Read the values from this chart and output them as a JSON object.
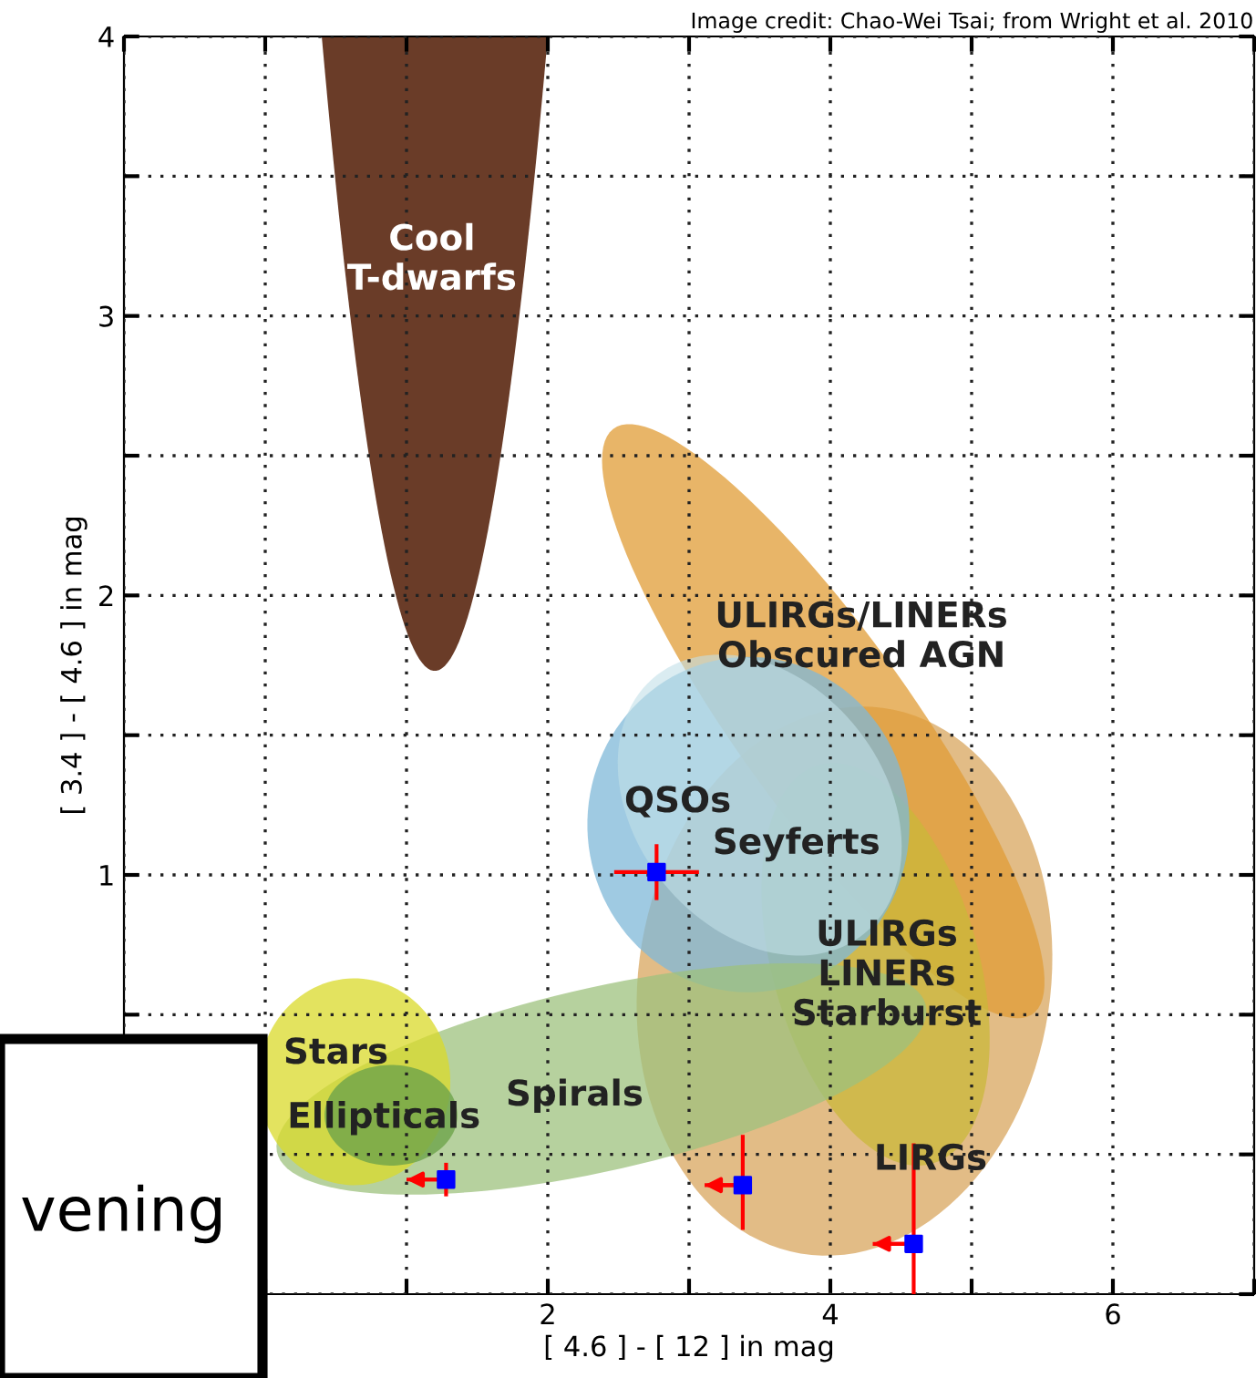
{
  "chart_data": {
    "type": "scatter",
    "xlabel": "[ 4.6 ] - [ 12 ] in mag",
    "ylabel": "[ 3.4 ] - [ 4.6 ] in mag",
    "xlim": [
      -1,
      7
    ],
    "ylim": [
      -0.5,
      4
    ],
    "xticks": [
      {
        "value": -1,
        "label": null
      },
      {
        "value": 0,
        "label": null
      },
      {
        "value": 1,
        "label": null
      },
      2,
      {
        "value": 3,
        "label": null
      },
      4,
      {
        "value": 5,
        "label": null
      },
      6,
      {
        "value": 7,
        "label": null
      }
    ],
    "yticks": [
      {
        "value": -0.5,
        "label": null
      },
      {
        "value": 0,
        "label": null
      },
      {
        "value": 0.5,
        "label": null
      },
      1,
      {
        "value": 1.5,
        "label": null
      },
      2,
      {
        "value": 2.5,
        "label": null
      },
      3,
      {
        "value": 3.5,
        "label": null
      },
      4
    ],
    "grid": true,
    "marker": "square",
    "series": [
      {
        "color": "#0000ff",
        "x": [
          2.77,
          1.28,
          3.38,
          4.59
        ],
        "values": [
          1.01,
          -0.09,
          -0.11,
          -0.32
        ],
        "xerrors": [
          [
            2.47,
            3.07
          ],
          [
            1.0,
            1.28
          ],
          [
            3.11,
            3.38
          ],
          [
            4.3,
            4.59
          ]
        ],
        "errors": [
          [
            0.91,
            1.11
          ],
          [
            -0.15,
            -0.03
          ],
          [
            -0.27,
            0.07
          ],
          [
            -0.5,
            0.04
          ]
        ]
      }
    ],
    "annotations": [
      "Image credit: Chao-Wei Tsai; from Wright et al. 2010",
      "vening",
      "Cool\nT-dwarfs",
      "ULIRGs/LINERs\nObscured AGN",
      "QSOs",
      "Seyferts",
      "ULIRGs\nLINERs\nStarburst",
      "LIRGs",
      "Stars",
      "Ellipticals",
      "Spirals"
    ]
  }
}
